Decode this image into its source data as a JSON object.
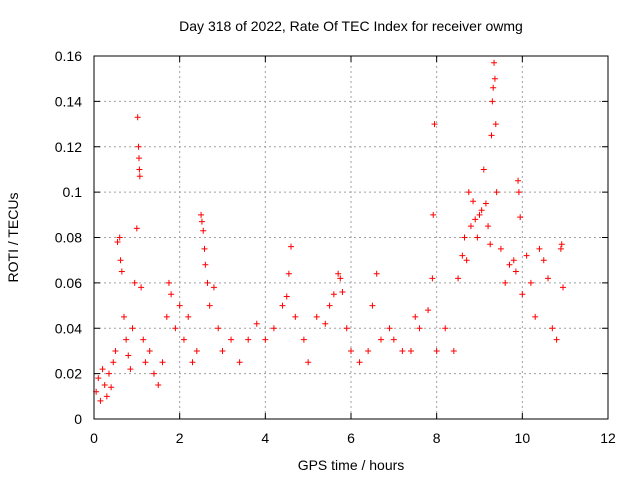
{
  "chart_data": {
    "type": "scatter",
    "title": "Day 318 of 2022, Rate Of TEC Index for receiver owmg",
    "xlabel": "GPS time / hours",
    "ylabel": "ROTI / TECUs",
    "xlim": [
      0,
      12
    ],
    "ylim": [
      0,
      0.16
    ],
    "xticks": [
      0,
      2,
      4,
      6,
      8,
      10,
      12
    ],
    "xtick_labels": [
      "0",
      "2",
      "4",
      "6",
      "8",
      "10",
      "12"
    ],
    "yticks": [
      0,
      0.02,
      0.04,
      0.06,
      0.08,
      0.1,
      0.12,
      0.14,
      0.16
    ],
    "ytick_labels": [
      "0",
      "0.02",
      "0.04",
      "0.06",
      "0.08",
      "0.1",
      "0.12",
      "0.14",
      "0.16"
    ],
    "grid": true,
    "marker": "plus",
    "color": "#ff0000",
    "series": [
      {
        "name": "ROTI",
        "points": [
          [
            0.05,
            0.012
          ],
          [
            0.1,
            0.018
          ],
          [
            0.15,
            0.008
          ],
          [
            0.2,
            0.022
          ],
          [
            0.25,
            0.015
          ],
          [
            0.3,
            0.01
          ],
          [
            0.35,
            0.02
          ],
          [
            0.4,
            0.014
          ],
          [
            0.45,
            0.025
          ],
          [
            0.5,
            0.03
          ],
          [
            0.55,
            0.078
          ],
          [
            0.6,
            0.08
          ],
          [
            0.62,
            0.07
          ],
          [
            0.65,
            0.065
          ],
          [
            0.7,
            0.045
          ],
          [
            0.75,
            0.035
          ],
          [
            0.8,
            0.028
          ],
          [
            0.85,
            0.022
          ],
          [
            0.9,
            0.04
          ],
          [
            0.95,
            0.06
          ],
          [
            1.0,
            0.084
          ],
          [
            1.02,
            0.133
          ],
          [
            1.04,
            0.12
          ],
          [
            1.05,
            0.115
          ],
          [
            1.06,
            0.11
          ],
          [
            1.07,
            0.107
          ],
          [
            1.1,
            0.058
          ],
          [
            1.15,
            0.035
          ],
          [
            1.2,
            0.025
          ],
          [
            1.3,
            0.03
          ],
          [
            1.4,
            0.02
          ],
          [
            1.5,
            0.015
          ],
          [
            1.6,
            0.025
          ],
          [
            1.7,
            0.045
          ],
          [
            1.75,
            0.06
          ],
          [
            1.8,
            0.055
          ],
          [
            1.9,
            0.04
          ],
          [
            2.0,
            0.05
          ],
          [
            2.1,
            0.035
          ],
          [
            2.2,
            0.045
          ],
          [
            2.3,
            0.025
          ],
          [
            2.4,
            0.03
          ],
          [
            2.5,
            0.09
          ],
          [
            2.52,
            0.087
          ],
          [
            2.55,
            0.083
          ],
          [
            2.58,
            0.075
          ],
          [
            2.6,
            0.068
          ],
          [
            2.65,
            0.06
          ],
          [
            2.7,
            0.05
          ],
          [
            2.8,
            0.058
          ],
          [
            2.9,
            0.04
          ],
          [
            3.0,
            0.03
          ],
          [
            3.2,
            0.035
          ],
          [
            3.4,
            0.025
          ],
          [
            3.6,
            0.035
          ],
          [
            3.8,
            0.042
          ],
          [
            4.0,
            0.035
          ],
          [
            4.2,
            0.04
          ],
          [
            4.4,
            0.05
          ],
          [
            4.5,
            0.054
          ],
          [
            4.55,
            0.064
          ],
          [
            4.6,
            0.076
          ],
          [
            4.7,
            0.045
          ],
          [
            4.9,
            0.035
          ],
          [
            5.0,
            0.025
          ],
          [
            5.2,
            0.045
          ],
          [
            5.4,
            0.042
          ],
          [
            5.5,
            0.05
          ],
          [
            5.6,
            0.055
          ],
          [
            5.7,
            0.064
          ],
          [
            5.75,
            0.062
          ],
          [
            5.8,
            0.056
          ],
          [
            5.9,
            0.04
          ],
          [
            6.0,
            0.03
          ],
          [
            6.2,
            0.025
          ],
          [
            6.4,
            0.03
          ],
          [
            6.5,
            0.05
          ],
          [
            6.6,
            0.064
          ],
          [
            6.7,
            0.035
          ],
          [
            6.9,
            0.04
          ],
          [
            7.0,
            0.035
          ],
          [
            7.2,
            0.03
          ],
          [
            7.4,
            0.03
          ],
          [
            7.5,
            0.045
          ],
          [
            7.6,
            0.04
          ],
          [
            7.8,
            0.048
          ],
          [
            7.9,
            0.062
          ],
          [
            7.92,
            0.09
          ],
          [
            7.95,
            0.13
          ],
          [
            8.0,
            0.03
          ],
          [
            8.2,
            0.04
          ],
          [
            8.4,
            0.03
          ],
          [
            8.5,
            0.062
          ],
          [
            8.6,
            0.072
          ],
          [
            8.65,
            0.08
          ],
          [
            8.7,
            0.07
          ],
          [
            8.75,
            0.1
          ],
          [
            8.8,
            0.085
          ],
          [
            8.85,
            0.096
          ],
          [
            8.9,
            0.088
          ],
          [
            8.95,
            0.08
          ],
          [
            9.0,
            0.09
          ],
          [
            9.05,
            0.092
          ],
          [
            9.1,
            0.11
          ],
          [
            9.15,
            0.095
          ],
          [
            9.2,
            0.085
          ],
          [
            9.25,
            0.077
          ],
          [
            9.28,
            0.125
          ],
          [
            9.3,
            0.14
          ],
          [
            9.32,
            0.146
          ],
          [
            9.34,
            0.157
          ],
          [
            9.36,
            0.15
          ],
          [
            9.38,
            0.13
          ],
          [
            9.4,
            0.1
          ],
          [
            9.5,
            0.075
          ],
          [
            9.6,
            0.06
          ],
          [
            9.7,
            0.068
          ],
          [
            9.8,
            0.07
          ],
          [
            9.85,
            0.065
          ],
          [
            9.9,
            0.105
          ],
          [
            9.92,
            0.1
          ],
          [
            9.95,
            0.089
          ],
          [
            10.0,
            0.055
          ],
          [
            10.1,
            0.072
          ],
          [
            10.2,
            0.06
          ],
          [
            10.3,
            0.045
          ],
          [
            10.4,
            0.075
          ],
          [
            10.5,
            0.07
          ],
          [
            10.6,
            0.062
          ],
          [
            10.7,
            0.04
          ],
          [
            10.8,
            0.035
          ],
          [
            10.9,
            0.075
          ],
          [
            10.92,
            0.077
          ],
          [
            10.95,
            0.058
          ]
        ]
      }
    ]
  }
}
